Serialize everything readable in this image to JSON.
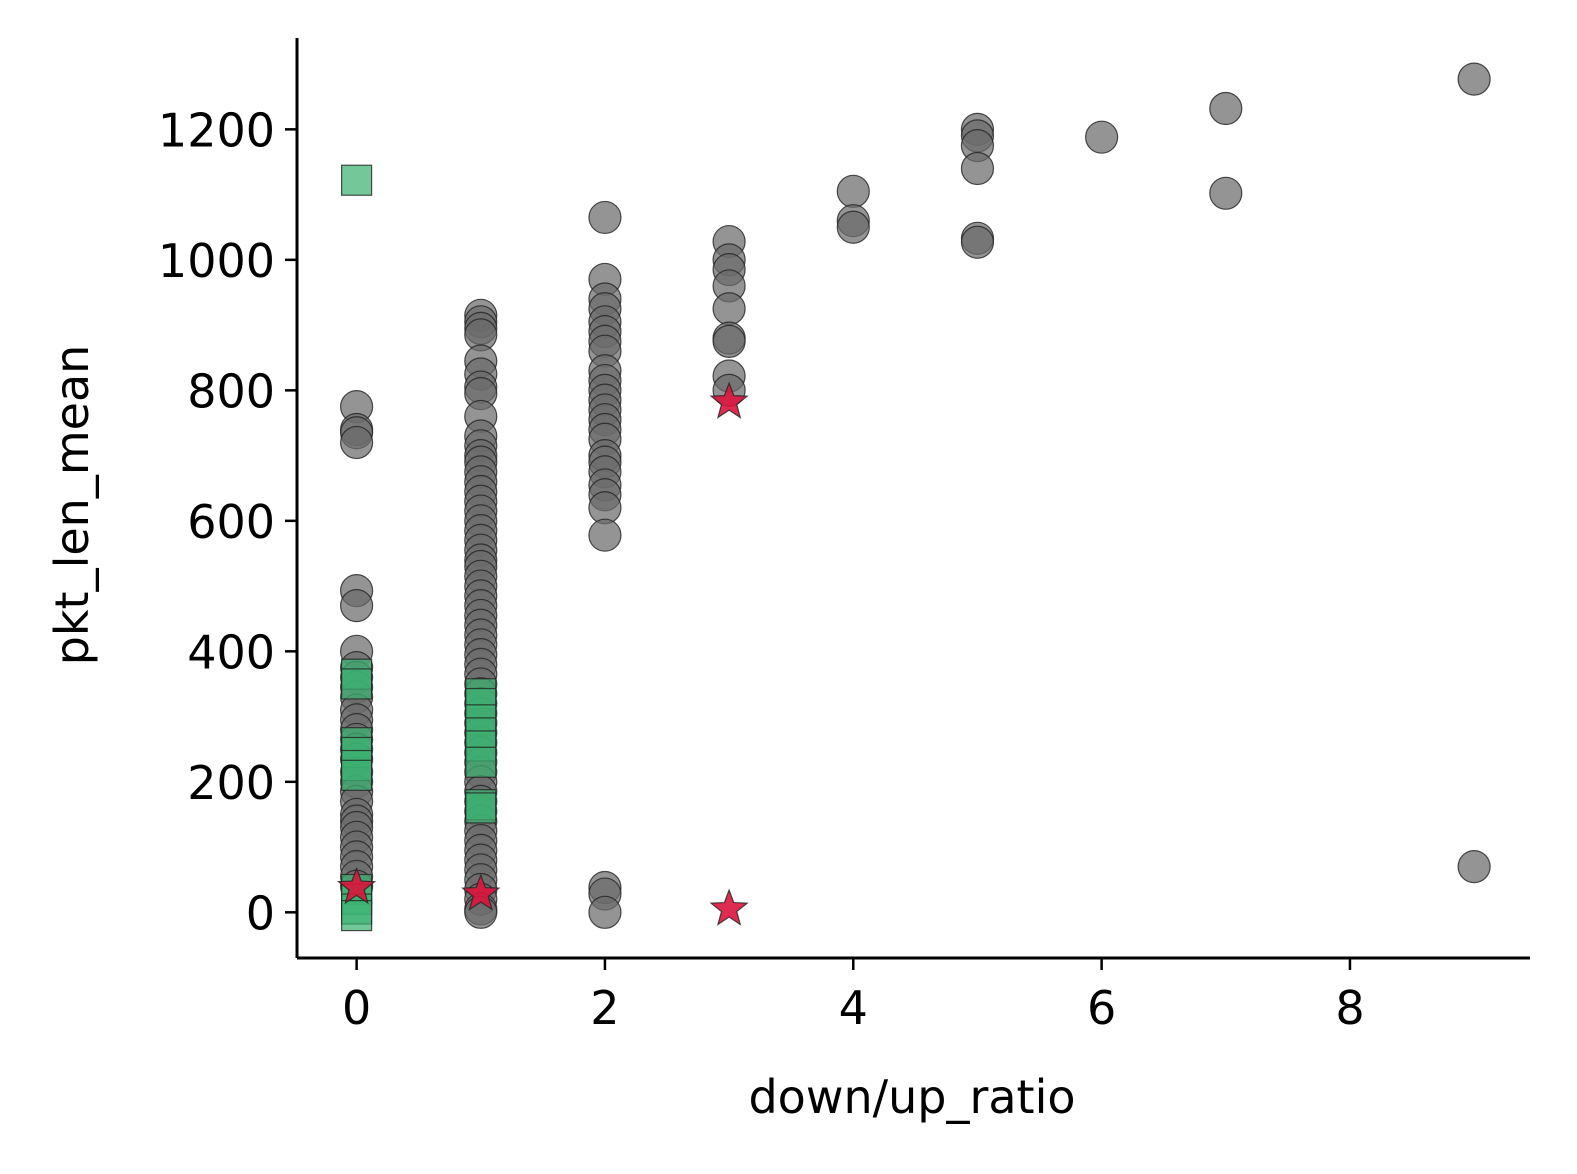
{
  "chart_data": {
    "type": "scatter",
    "xlabel": "down/up_ratio",
    "ylabel": "pkt_len_mean",
    "xlim": [
      -0.48,
      9.45
    ],
    "ylim": [
      -70,
      1340
    ],
    "x_ticks": [
      "0",
      "2",
      "4",
      "6",
      "8"
    ],
    "x_tick_values": [
      0,
      2,
      4,
      6,
      8
    ],
    "y_ticks": [
      "0",
      "200",
      "400",
      "600",
      "800",
      "1000",
      "1200"
    ],
    "y_tick_values": [
      0,
      200,
      400,
      600,
      800,
      1000,
      1200
    ],
    "grid": false,
    "legend": "none",
    "colors": {
      "circle": "#6b6b6b",
      "square": "#3cb371",
      "star": "#dc143c"
    },
    "series": [
      {
        "marker": "circle",
        "color": "#6b6b6b",
        "points": [
          [
            0,
            775
          ],
          [
            0,
            740
          ],
          [
            0,
            735
          ],
          [
            0,
            720
          ],
          [
            0,
            493
          ],
          [
            0,
            470
          ],
          [
            0,
            400
          ],
          [
            0,
            375
          ],
          [
            0,
            360
          ],
          [
            0,
            345
          ],
          [
            0,
            330
          ],
          [
            0,
            310
          ],
          [
            0,
            295
          ],
          [
            0,
            280
          ],
          [
            0,
            265
          ],
          [
            0,
            250
          ],
          [
            0,
            235
          ],
          [
            0,
            215
          ],
          [
            0,
            200
          ],
          [
            0,
            185
          ],
          [
            0,
            170
          ],
          [
            0,
            150
          ],
          [
            0,
            140
          ],
          [
            0,
            130
          ],
          [
            0,
            115
          ],
          [
            0,
            100
          ],
          [
            0,
            85
          ],
          [
            0,
            70
          ],
          [
            0,
            55
          ],
          [
            0,
            40
          ],
          [
            1,
            915
          ],
          [
            1,
            905
          ],
          [
            1,
            895
          ],
          [
            1,
            885
          ],
          [
            1,
            845
          ],
          [
            1,
            825
          ],
          [
            1,
            805
          ],
          [
            1,
            795
          ],
          [
            1,
            760
          ],
          [
            1,
            730
          ],
          [
            1,
            715
          ],
          [
            1,
            700
          ],
          [
            1,
            690
          ],
          [
            1,
            675
          ],
          [
            1,
            660
          ],
          [
            1,
            645
          ],
          [
            1,
            630
          ],
          [
            1,
            615
          ],
          [
            1,
            600
          ],
          [
            1,
            585
          ],
          [
            1,
            570
          ],
          [
            1,
            555
          ],
          [
            1,
            540
          ],
          [
            1,
            530
          ],
          [
            1,
            515
          ],
          [
            1,
            500
          ],
          [
            1,
            485
          ],
          [
            1,
            470
          ],
          [
            1,
            455
          ],
          [
            1,
            440
          ],
          [
            1,
            425
          ],
          [
            1,
            410
          ],
          [
            1,
            395
          ],
          [
            1,
            380
          ],
          [
            1,
            365
          ],
          [
            1,
            350
          ],
          [
            1,
            335
          ],
          [
            1,
            320
          ],
          [
            1,
            305
          ],
          [
            1,
            290
          ],
          [
            1,
            275
          ],
          [
            1,
            260
          ],
          [
            1,
            245
          ],
          [
            1,
            230
          ],
          [
            1,
            215
          ],
          [
            1,
            200
          ],
          [
            1,
            185
          ],
          [
            1,
            170
          ],
          [
            1,
            155
          ],
          [
            1,
            140
          ],
          [
            1,
            125
          ],
          [
            1,
            110
          ],
          [
            1,
            95
          ],
          [
            1,
            80
          ],
          [
            1,
            65
          ],
          [
            1,
            50
          ],
          [
            1,
            35
          ],
          [
            1,
            20
          ],
          [
            1,
            5
          ],
          [
            1,
            0
          ],
          [
            2,
            1065
          ],
          [
            2,
            970
          ],
          [
            2,
            940
          ],
          [
            2,
            925
          ],
          [
            2,
            905
          ],
          [
            2,
            890
          ],
          [
            2,
            875
          ],
          [
            2,
            860
          ],
          [
            2,
            830
          ],
          [
            2,
            815
          ],
          [
            2,
            800
          ],
          [
            2,
            785
          ],
          [
            2,
            770
          ],
          [
            2,
            755
          ],
          [
            2,
            740
          ],
          [
            2,
            725
          ],
          [
            2,
            700
          ],
          [
            2,
            690
          ],
          [
            2,
            675
          ],
          [
            2,
            655
          ],
          [
            2,
            640
          ],
          [
            2,
            620
          ],
          [
            2,
            578
          ],
          [
            2,
            38
          ],
          [
            2,
            28
          ],
          [
            2,
            0
          ],
          [
            3,
            1028
          ],
          [
            3,
            1000
          ],
          [
            3,
            985
          ],
          [
            3,
            960
          ],
          [
            3,
            925
          ],
          [
            3,
            880
          ],
          [
            3,
            875
          ],
          [
            3,
            822
          ],
          [
            3,
            800
          ],
          [
            4,
            1105
          ],
          [
            4,
            1060
          ],
          [
            4,
            1050
          ],
          [
            5,
            1200
          ],
          [
            5,
            1190
          ],
          [
            5,
            1175
          ],
          [
            5,
            1140
          ],
          [
            5,
            1033
          ],
          [
            5,
            1027
          ],
          [
            6,
            1188
          ],
          [
            7,
            1232
          ],
          [
            7,
            1102
          ],
          [
            9,
            1277
          ],
          [
            9,
            70
          ]
        ]
      },
      {
        "marker": "square",
        "color": "#3cb371",
        "points": [
          [
            0,
            1122
          ],
          [
            0,
            365
          ],
          [
            0,
            350
          ],
          [
            0,
            260
          ],
          [
            0,
            245
          ],
          [
            0,
            225
          ],
          [
            0,
            210
          ],
          [
            0,
            35
          ],
          [
            0,
            20
          ],
          [
            0,
            5
          ],
          [
            0,
            -5
          ],
          [
            1,
            335
          ],
          [
            1,
            320
          ],
          [
            1,
            295
          ],
          [
            1,
            275
          ],
          [
            1,
            255
          ],
          [
            1,
            230
          ],
          [
            1,
            165
          ],
          [
            1,
            160
          ]
        ]
      },
      {
        "marker": "star",
        "color": "#dc143c",
        "points": [
          [
            1,
            28
          ],
          [
            3,
            782
          ],
          [
            3,
            5
          ],
          [
            0,
            38
          ]
        ]
      }
    ]
  }
}
